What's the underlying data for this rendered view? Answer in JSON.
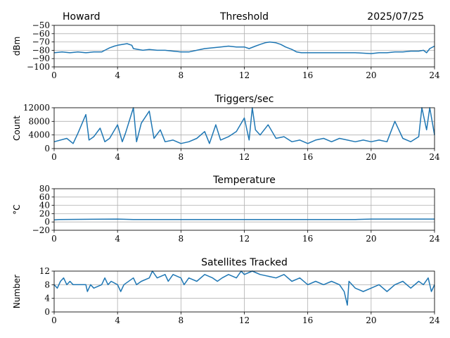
{
  "header": {
    "station": "Howard",
    "date": "2025/07/25"
  },
  "chart_data": [
    {
      "type": "line",
      "title": "Threshold",
      "xlabel": "",
      "ylabel": "dBm",
      "xlim": [
        0,
        24
      ],
      "ylim": [
        -100,
        -50
      ],
      "xticks": [
        "0",
        "4",
        "8",
        "12",
        "16",
        "20",
        "24"
      ],
      "yticks": [
        "−50",
        "−60",
        "−70",
        "−80",
        "−90",
        "−100"
      ],
      "ytick_values": [
        -50,
        -60,
        -70,
        -80,
        -90,
        -100
      ],
      "grid": true,
      "color": "#1f77b4",
      "series": [
        {
          "x": [
            0,
            0.5,
            1,
            1.5,
            2,
            2.5,
            3,
            3.2,
            3.5,
            3.8,
            4,
            4.3,
            4.6,
            4.9,
            5.0,
            5.3,
            5.6,
            6,
            6.5,
            7,
            7.5,
            8,
            8.5,
            9,
            9.5,
            10,
            10.5,
            11,
            11.5,
            12,
            12.3,
            12.7,
            13,
            13.3,
            13.6,
            14,
            14.3,
            14.6,
            15,
            15.3,
            15.6,
            16,
            17,
            18,
            19,
            20,
            20.5,
            21,
            21.5,
            22,
            22.5,
            23,
            23.3,
            23.5,
            23.7,
            24
          ],
          "y": [
            -83,
            -82,
            -83,
            -82,
            -83,
            -82,
            -82,
            -80,
            -77,
            -75,
            -74,
            -73,
            -72,
            -74,
            -78,
            -79,
            -80,
            -79,
            -80,
            -80,
            -81,
            -82,
            -82,
            -80,
            -78,
            -77,
            -76,
            -75,
            -76,
            -76,
            -78,
            -75,
            -73,
            -71,
            -70,
            -71,
            -73,
            -76,
            -79,
            -82,
            -83,
            -83,
            -83,
            -83,
            -83,
            -84,
            -83,
            -83,
            -82,
            -82,
            -81,
            -81,
            -80,
            -83,
            -78,
            -75
          ]
        }
      ]
    },
    {
      "type": "line",
      "title": "Triggers/sec",
      "xlabel": "",
      "ylabel": "Count",
      "xlim": [
        0,
        24
      ],
      "ylim": [
        0,
        12000
      ],
      "xticks": [
        "0",
        "4",
        "8",
        "12",
        "16",
        "20",
        "24"
      ],
      "yticks": [
        "0",
        "4000",
        "8000",
        "12000"
      ],
      "ytick_values": [
        0,
        4000,
        8000,
        12000
      ],
      "grid": true,
      "color": "#1f77b4",
      "series": [
        {
          "x": [
            0,
            0.8,
            1.2,
            1.5,
            2.0,
            2.2,
            2.5,
            2.9,
            3.2,
            3.5,
            4.0,
            4.3,
            4.5,
            5.0,
            5.2,
            5.5,
            6.0,
            6.3,
            6.7,
            7.0,
            7.5,
            8.0,
            8.5,
            9.0,
            9.5,
            9.8,
            10.2,
            10.5,
            11.0,
            11.5,
            12.0,
            12.3,
            12.5,
            12.7,
            13.0,
            13.5,
            14.0,
            14.5,
            15.0,
            15.5,
            16.0,
            16.5,
            17.0,
            17.5,
            18.0,
            18.5,
            19.0,
            19.5,
            20.0,
            20.5,
            21.0,
            21.5,
            22.0,
            22.5,
            23.0,
            23.2,
            23.5,
            23.7,
            24.0
          ],
          "y": [
            2000,
            3000,
            1500,
            4500,
            10000,
            2500,
            3500,
            6000,
            2000,
            3000,
            7000,
            2000,
            4500,
            12000,
            2000,
            7500,
            11000,
            3000,
            5500,
            2000,
            2500,
            1500,
            2000,
            3000,
            5000,
            1500,
            7000,
            2500,
            3500,
            5000,
            9000,
            2500,
            12000,
            5500,
            4000,
            7000,
            3000,
            3500,
            2000,
            2500,
            1500,
            2500,
            3000,
            2000,
            3000,
            2500,
            2000,
            2500,
            2000,
            2500,
            2000,
            8000,
            3000,
            2000,
            3500,
            12000,
            5500,
            12000,
            4000
          ]
        }
      ]
    },
    {
      "type": "line",
      "title": "Temperature",
      "xlabel": "",
      "ylabel": "°C",
      "xlim": [
        0,
        24
      ],
      "ylim": [
        -20,
        80
      ],
      "xticks": [
        "0",
        "4",
        "8",
        "12",
        "16",
        "20",
        "24"
      ],
      "yticks": [
        "−20",
        "0",
        "20",
        "40",
        "60",
        "80"
      ],
      "ytick_values": [
        -20,
        0,
        20,
        40,
        60,
        80
      ],
      "grid": true,
      "color": "#1f77b4",
      "series": [
        {
          "x": [
            0,
            0.3,
            4,
            5,
            8,
            12,
            16,
            19,
            20,
            24
          ],
          "y": [
            5,
            6,
            7,
            6,
            6,
            6,
            6,
            6,
            7,
            7
          ]
        }
      ]
    },
    {
      "type": "line",
      "title": "Satellites Tracked",
      "xlabel": "",
      "ylabel": "Number",
      "xlim": [
        0,
        24
      ],
      "ylim": [
        0,
        12
      ],
      "xticks": [
        "0",
        "4",
        "8",
        "12",
        "16",
        "20",
        "24"
      ],
      "yticks": [
        "0",
        "4",
        "8",
        "12"
      ],
      "ytick_values": [
        0,
        4,
        8,
        12
      ],
      "grid": true,
      "color": "#1f77b4",
      "series": [
        {
          "x": [
            0,
            0.2,
            0.4,
            0.6,
            0.8,
            1.0,
            1.2,
            2.0,
            2.1,
            2.3,
            2.5,
            3.0,
            3.2,
            3.4,
            3.6,
            4.0,
            4.2,
            4.4,
            5.0,
            5.2,
            5.5,
            6.0,
            6.2,
            6.5,
            7.0,
            7.2,
            7.5,
            8.0,
            8.2,
            8.5,
            9.0,
            9.5,
            10.0,
            10.3,
            10.6,
            11.0,
            11.5,
            11.8,
            12.0,
            12.5,
            13.0,
            14.0,
            14.5,
            15.0,
            15.5,
            16.0,
            16.5,
            17.0,
            17.5,
            18.0,
            18.3,
            18.5,
            18.6,
            19.0,
            19.5,
            20.0,
            20.5,
            21.0,
            21.5,
            22.0,
            22.5,
            23.0,
            23.3,
            23.6,
            23.8,
            24.0
          ],
          "y": [
            8,
            7,
            9,
            10,
            8,
            9,
            8,
            8,
            6,
            8,
            7,
            8,
            10,
            8,
            9,
            8,
            6,
            8,
            10,
            8,
            9,
            10,
            12,
            10,
            11,
            9,
            11,
            10,
            8,
            10,
            9,
            11,
            10,
            9,
            10,
            11,
            10,
            12,
            11,
            12,
            11,
            10,
            11,
            9,
            10,
            8,
            9,
            8,
            9,
            8,
            6,
            2,
            9,
            7,
            6,
            7,
            8,
            6,
            8,
            9,
            7,
            9,
            8,
            10,
            6,
            8
          ]
        }
      ]
    }
  ]
}
